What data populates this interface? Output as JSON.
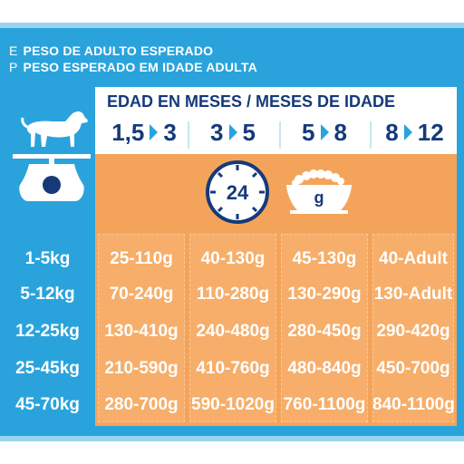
{
  "header": {
    "lines": [
      {
        "code": "E",
        "text": "PESO DE ADULTO ESPERADO"
      },
      {
        "code": "P",
        "text": "PESO ESPERADO EM IDADE ADULTA"
      }
    ]
  },
  "age": {
    "title": "EDAD EN MESES / MESES DE IDADE",
    "columns": [
      {
        "from": "1,5",
        "to": "3"
      },
      {
        "from": "3",
        "to": "5"
      },
      {
        "from": "5",
        "to": "8"
      },
      {
        "from": "8",
        "to": "12"
      }
    ]
  },
  "icons": {
    "clock_value": "24",
    "bowl_label": "g"
  },
  "rows": [
    {
      "weight": "1-5kg",
      "values": [
        "25-110g",
        "40-130g",
        "45-130g",
        "40-Adult"
      ]
    },
    {
      "weight": "5-12kg",
      "values": [
        "70-240g",
        "110-280g",
        "130-290g",
        "130-Adult"
      ]
    },
    {
      "weight": "12-25kg",
      "values": [
        "130-410g",
        "240-480g",
        "280-450g",
        "290-420g"
      ]
    },
    {
      "weight": "25-45kg",
      "values": [
        "210-590g",
        "410-760g",
        "480-840g",
        "450-700g"
      ]
    },
    {
      "weight": "45-70kg",
      "values": [
        "280-700g",
        "590-1020g",
        "760-1100g",
        "840-1100g"
      ]
    }
  ],
  "colors": {
    "blue": "#2aa3dc",
    "navy": "#153a7a",
    "orange": "#f4a45a"
  }
}
